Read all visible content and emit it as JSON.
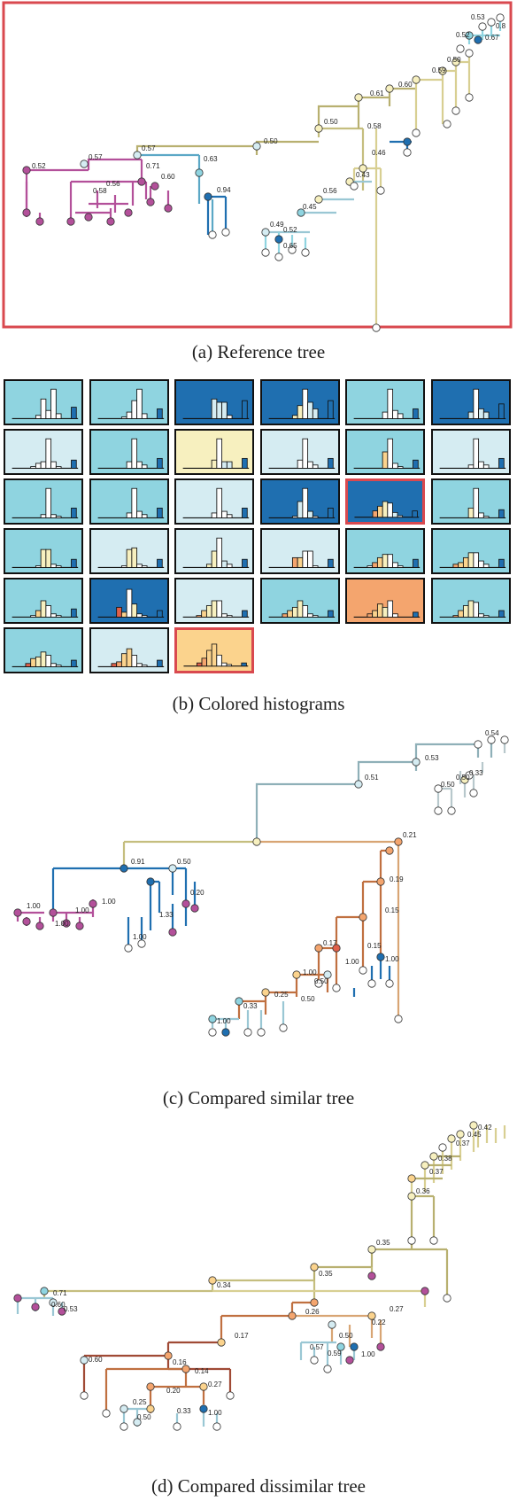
{
  "captions": {
    "a": "(a)  Reference tree",
    "b": "(b)  Colored histograms",
    "c": "(c)  Compared similar tree",
    "d": "(d)  Compared dissimilar tree"
  },
  "colors": {
    "highlight": "#d9494f",
    "magenta": "#b3509a",
    "dark_blue": "#1f6fb0",
    "light_blue": "#8fd4e0",
    "pale_blue": "#d5ecf2",
    "pale_yellow": "#f7f0bf",
    "orange": "#f4a56e",
    "light_orange": "#fbd38d",
    "red": "#e0604a"
  },
  "tree_a_labels": [
    "0.53",
    "0.8",
    "0.67",
    "0.52",
    "0.50",
    "0.59",
    "0.60",
    "0.61",
    "0.58",
    "0.50",
    "0.50",
    "0.57",
    "0.57",
    "0.52",
    "0.71",
    "0.60",
    "0.56",
    "0.58",
    "0.63",
    "0.94",
    "0.46",
    "0.43",
    "0.56",
    "0.45",
    "0.49",
    "0.52",
    "0.65"
  ],
  "tree_c_labels": [
    "0.54",
    "0.53",
    "0.33",
    "0.50",
    "0.50",
    "0.51",
    "0.21",
    "0.19",
    "0.91",
    "0.50",
    "1.00",
    "0.20",
    "1.00",
    "1.00",
    "1.33",
    "0.15",
    "1.00",
    "1.00",
    "0.15",
    "0.17",
    "1.00",
    "1.00",
    "0.50",
    "0.25",
    "0.33",
    "1.00",
    "0.50",
    "1.00"
  ],
  "tree_d_labels": [
    "0.42",
    "0.45",
    "0.37",
    "0.38",
    "0.37",
    "0.36",
    "0.35",
    "0.35",
    "0.34",
    "0.27",
    "0.26",
    "0.22",
    "0.50",
    "0.71",
    "0.60",
    "0.53",
    "0.57",
    "0.59",
    "1.00",
    "0.17",
    "0.60",
    "0.16",
    "0.14",
    "0.27",
    "0.20",
    "0.25",
    "0.50",
    "0.33",
    "1.00"
  ],
  "histograms": [
    {
      "bg": "#8fd4e0",
      "highlight": false,
      "bars": [
        0,
        0,
        0,
        0.1,
        0.6,
        0.25,
        0.9,
        0.15,
        0.35
      ],
      "fills": [
        "#fff",
        "#fff",
        "#fff",
        "#fff",
        "#fff",
        "#fff",
        "#fff",
        "#fff",
        "#1f6fb0"
      ]
    },
    {
      "bg": "#8fd4e0",
      "highlight": false,
      "bars": [
        0,
        0,
        0,
        0.05,
        0.2,
        0.55,
        0.9,
        0.15,
        0.3
      ],
      "fills": [
        "#fff",
        "#fff",
        "#fff",
        "#fff",
        "#fff",
        "#fff",
        "#fff",
        "#fff",
        "#1f6fb0"
      ]
    },
    {
      "bg": "#1f6fb0",
      "highlight": false,
      "bars": [
        0,
        0,
        0,
        0,
        0.6,
        0.5,
        0.5,
        0.1,
        0.55
      ],
      "fills": [
        "#fff",
        "#fff",
        "#fff",
        "#fff",
        "#d5ecf2",
        "#d5ecf2",
        "#d5ecf2",
        "#fff",
        "#1f6fb0"
      ]
    },
    {
      "bg": "#1f6fb0",
      "highlight": false,
      "bars": [
        0,
        0,
        0,
        0.1,
        0.4,
        0.9,
        0.5,
        0.3,
        0.55
      ],
      "fills": [
        "#fff",
        "#fff",
        "#fff",
        "#f7f0bf",
        "#f7f0bf",
        "#fff",
        "#d5ecf2",
        "#d5ecf2",
        "#1f6fb0"
      ]
    },
    {
      "bg": "#8fd4e0",
      "highlight": false,
      "bars": [
        0,
        0,
        0,
        0,
        0.2,
        0.9,
        0.25,
        0.15,
        0.3
      ],
      "fills": [
        "#fff",
        "#fff",
        "#fff",
        "#fff",
        "#fff",
        "#fff",
        "#fff",
        "#fff",
        "#1f6fb0"
      ]
    },
    {
      "bg": "#1f6fb0",
      "highlight": false,
      "bars": [
        0,
        0,
        0,
        0,
        0.2,
        0.9,
        0.3,
        0.2,
        0.45
      ],
      "fills": [
        "#fff",
        "#fff",
        "#fff",
        "#fff",
        "#d5ecf2",
        "#fff",
        "#d5ecf2",
        "#d5ecf2",
        "#1f6fb0"
      ]
    },
    {
      "bg": "#d5ecf2",
      "highlight": false,
      "bars": [
        0,
        0,
        0.05,
        0.15,
        0.2,
        0.9,
        0.2,
        0.05,
        0.25
      ],
      "fills": [
        "#fff",
        "#fff",
        "#fff",
        "#fff",
        "#fff",
        "#fff",
        "#fff",
        "#fff",
        "#1f6fb0"
      ]
    },
    {
      "bg": "#8fd4e0",
      "highlight": false,
      "bars": [
        0,
        0,
        0,
        0,
        0.2,
        0.9,
        0.2,
        0.1,
        0.3
      ],
      "fills": [
        "#fff",
        "#fff",
        "#fff",
        "#fff",
        "#fff",
        "#fff",
        "#fff",
        "#fff",
        "#1f6fb0"
      ]
    },
    {
      "bg": "#f7f0bf",
      "highlight": false,
      "bars": [
        0,
        0,
        0,
        0,
        0.25,
        0.9,
        0.2,
        0.2,
        0.3
      ],
      "fills": [
        "#fff",
        "#fff",
        "#fff",
        "#fff",
        "#f7f0bf",
        "#fff",
        "#d5ecf2",
        "#d5ecf2",
        "#1f6fb0"
      ]
    },
    {
      "bg": "#d5ecf2",
      "highlight": false,
      "bars": [
        0,
        0,
        0,
        0,
        0.25,
        0.9,
        0.2,
        0.1,
        0.3
      ],
      "fills": [
        "#fff",
        "#fff",
        "#fff",
        "#fff",
        "#fff",
        "#fff",
        "#fff",
        "#fff",
        "#1f6fb0"
      ]
    },
    {
      "bg": "#8fd4e0",
      "highlight": false,
      "bars": [
        0,
        0,
        0,
        0,
        0.5,
        0.9,
        0.15,
        0.05,
        0.25
      ],
      "fills": [
        "#fff",
        "#fff",
        "#fff",
        "#fff",
        "#fbd38d",
        "#fff",
        "#fff",
        "#fff",
        "#1f6fb0"
      ]
    },
    {
      "bg": "#d5ecf2",
      "highlight": false,
      "bars": [
        0,
        0,
        0,
        0,
        0.1,
        0.9,
        0.2,
        0.1,
        0.3
      ],
      "fills": [
        "#fff",
        "#fff",
        "#fff",
        "#fff",
        "#fff",
        "#fff",
        "#fff",
        "#fff",
        "#1f6fb0"
      ]
    },
    {
      "bg": "#8fd4e0",
      "highlight": false,
      "bars": [
        0,
        0,
        0,
        0,
        0.1,
        0.9,
        0.1,
        0.05,
        0.3
      ],
      "fills": [
        "#fff",
        "#fff",
        "#fff",
        "#fff",
        "#fff",
        "#fff",
        "#fff",
        "#fff",
        "#1f6fb0"
      ]
    },
    {
      "bg": "#8fd4e0",
      "highlight": false,
      "bars": [
        0,
        0,
        0,
        0,
        0.15,
        0.9,
        0.2,
        0.1,
        0.3
      ],
      "fills": [
        "#fff",
        "#fff",
        "#fff",
        "#fff",
        "#fff",
        "#fff",
        "#fff",
        "#fff",
        "#1f6fb0"
      ]
    },
    {
      "bg": "#d5ecf2",
      "highlight": false,
      "bars": [
        0,
        0,
        0,
        0,
        0.15,
        0.9,
        0.2,
        0.1,
        0.3
      ],
      "fills": [
        "#fff",
        "#fff",
        "#fff",
        "#fff",
        "#fff",
        "#fff",
        "#fff",
        "#fff",
        "#1f6fb0"
      ]
    },
    {
      "bg": "#1f6fb0",
      "highlight": false,
      "bars": [
        0,
        0,
        0,
        0.05,
        0.5,
        0.9,
        0.2,
        0.05,
        0.3
      ],
      "fills": [
        "#fff",
        "#fff",
        "#fff",
        "#fff",
        "#d5ecf2",
        "#fff",
        "#d5ecf2",
        "#fff",
        "#1f6fb0"
      ]
    },
    {
      "bg": "#1f6fb0",
      "highlight": true,
      "bars": [
        0,
        0,
        0.2,
        0.35,
        0.5,
        0.45,
        0.15,
        0.05,
        0.2
      ],
      "fills": [
        "#fff",
        "#fff",
        "#f4a56e",
        "#fbd38d",
        "#f7f0bf",
        "#fff",
        "#d5ecf2",
        "#fff",
        "#1f6fb0"
      ]
    },
    {
      "bg": "#8fd4e0",
      "highlight": false,
      "bars": [
        0,
        0,
        0,
        0,
        0.3,
        0.9,
        0.15,
        0.05,
        0.25
      ],
      "fills": [
        "#fff",
        "#fff",
        "#fff",
        "#fff",
        "#f7f0bf",
        "#fff",
        "#fff",
        "#fff",
        "#1f6fb0"
      ]
    },
    {
      "bg": "#8fd4e0",
      "highlight": false,
      "bars": [
        0,
        0,
        0,
        0.05,
        0.55,
        0.55,
        0.1,
        0.05,
        0.25
      ],
      "fills": [
        "#fff",
        "#fff",
        "#fff",
        "#fff",
        "#f7f0bf",
        "#f7f0bf",
        "#fff",
        "#fff",
        "#1f6fb0"
      ]
    },
    {
      "bg": "#d5ecf2",
      "highlight": false,
      "bars": [
        0,
        0,
        0,
        0.05,
        0.55,
        0.6,
        0.1,
        0.05,
        0.25
      ],
      "fills": [
        "#fff",
        "#fff",
        "#fff",
        "#fff",
        "#f7f0bf",
        "#f7f0bf",
        "#fff",
        "#fff",
        "#1f6fb0"
      ]
    },
    {
      "bg": "#d5ecf2",
      "highlight": false,
      "bars": [
        0,
        0,
        0,
        0.1,
        0.5,
        0.9,
        0.2,
        0.1,
        0.25
      ],
      "fills": [
        "#fff",
        "#fff",
        "#fff",
        "#f7f0bf",
        "#f7f0bf",
        "#fff",
        "#d5ecf2",
        "#fff",
        "#1f6fb0"
      ]
    },
    {
      "bg": "#d5ecf2",
      "highlight": false,
      "bars": [
        0,
        0,
        0,
        0.3,
        0.3,
        0.5,
        0.5,
        0.05,
        0.25
      ],
      "fills": [
        "#fff",
        "#fff",
        "#fff",
        "#f4a56e",
        "#fbd38d",
        "#fff",
        "#fff",
        "#fff",
        "#1f6fb0"
      ]
    },
    {
      "bg": "#8fd4e0",
      "highlight": false,
      "bars": [
        0,
        0.05,
        0.15,
        0.3,
        0.4,
        0.4,
        0.15,
        0.05,
        0.25
      ],
      "fills": [
        "#fff",
        "#fff",
        "#f4a56e",
        "#fbd38d",
        "#f7f0bf",
        "#fff",
        "#fff",
        "#fff",
        "#1f6fb0"
      ]
    },
    {
      "bg": "#8fd4e0",
      "highlight": false,
      "bars": [
        0,
        0.1,
        0.15,
        0.3,
        0.45,
        0.45,
        0.2,
        0.1,
        0.25
      ],
      "fills": [
        "#fff",
        "#f4a56e",
        "#fbd38d",
        "#fbd38d",
        "#f7f0bf",
        "#fff",
        "#fff",
        "#fff",
        "#1f6fb0"
      ]
    },
    {
      "bg": "#8fd4e0",
      "highlight": false,
      "bars": [
        0,
        0,
        0.05,
        0.2,
        0.5,
        0.35,
        0.1,
        0.05,
        0.25
      ],
      "fills": [
        "#fff",
        "#fff",
        "#fff",
        "#fbd38d",
        "#f7f0bf",
        "#fff",
        "#fff",
        "#fff",
        "#1f6fb0"
      ]
    },
    {
      "bg": "#1f6fb0",
      "highlight": false,
      "bars": [
        0,
        0,
        0.3,
        0.15,
        0.85,
        0.4,
        0.1,
        0.05,
        0.2
      ],
      "fills": [
        "#fff",
        "#fff",
        "#e0604a",
        "#fbd38d",
        "#fff",
        "#f7f0bf",
        "#fff",
        "#fff",
        "#1f6fb0"
      ]
    },
    {
      "bg": "#d5ecf2",
      "highlight": false,
      "bars": [
        0,
        0.05,
        0.2,
        0.35,
        0.5,
        0.5,
        0.1,
        0.05,
        0.2
      ],
      "fills": [
        "#fff",
        "#f4a56e",
        "#fbd38d",
        "#f7f0bf",
        "#f7f0bf",
        "#fff",
        "#fff",
        "#fff",
        "#1f6fb0"
      ]
    },
    {
      "bg": "#8fd4e0",
      "highlight": false,
      "bars": [
        0,
        0.1,
        0.2,
        0.3,
        0.5,
        0.35,
        0.1,
        0.05,
        0.2
      ],
      "fills": [
        "#fff",
        "#f4a56e",
        "#fbd38d",
        "#f7f0bf",
        "#f7f0bf",
        "#fff",
        "#fff",
        "#fff",
        "#1f6fb0"
      ]
    },
    {
      "bg": "#f4a56e",
      "highlight": false,
      "bars": [
        0,
        0.1,
        0.2,
        0.4,
        0.3,
        0.5,
        0.1,
        0,
        0.15
      ],
      "fills": [
        "#fff",
        "#f4a56e",
        "#fbd38d",
        "#fbd38d",
        "#f7f0bf",
        "#fff",
        "#fff",
        "#fff",
        "#1f6fb0"
      ]
    },
    {
      "bg": "#8fd4e0",
      "highlight": false,
      "bars": [
        0,
        0.05,
        0.2,
        0.35,
        0.5,
        0.45,
        0.1,
        0.05,
        0.2
      ],
      "fills": [
        "#fff",
        "#f4a56e",
        "#fbd38d",
        "#f7f0bf",
        "#f7f0bf",
        "#fff",
        "#fff",
        "#fff",
        "#1f6fb0"
      ]
    },
    {
      "bg": "#8fd4e0",
      "highlight": false,
      "bars": [
        0,
        0.1,
        0.25,
        0.3,
        0.45,
        0.35,
        0.1,
        0.05,
        0.2
      ],
      "fills": [
        "#fff",
        "#e0604a",
        "#fbd38d",
        "#f7f0bf",
        "#f7f0bf",
        "#fff",
        "#fff",
        "#fff",
        "#1f6fb0"
      ]
    },
    {
      "bg": "#d5ecf2",
      "highlight": false,
      "bars": [
        0,
        0.1,
        0.15,
        0.4,
        0.55,
        0.35,
        0.1,
        0.05,
        0.2
      ],
      "fills": [
        "#fff",
        "#e0604a",
        "#f4a56e",
        "#fbd38d",
        "#fbd38d",
        "#fff",
        "#fff",
        "#fff",
        "#1f6fb0"
      ]
    },
    {
      "bg": "#fbd38d",
      "highlight": true,
      "bars": [
        0,
        0.1,
        0.25,
        0.5,
        0.7,
        0.35,
        0.1,
        0.05,
        0.1
      ],
      "fills": [
        "#fff",
        "#e0604a",
        "#f4a56e",
        "#fbd38d",
        "#fbd38d",
        "#fff",
        "#fff",
        "#fff",
        "#1f6fb0"
      ]
    }
  ]
}
